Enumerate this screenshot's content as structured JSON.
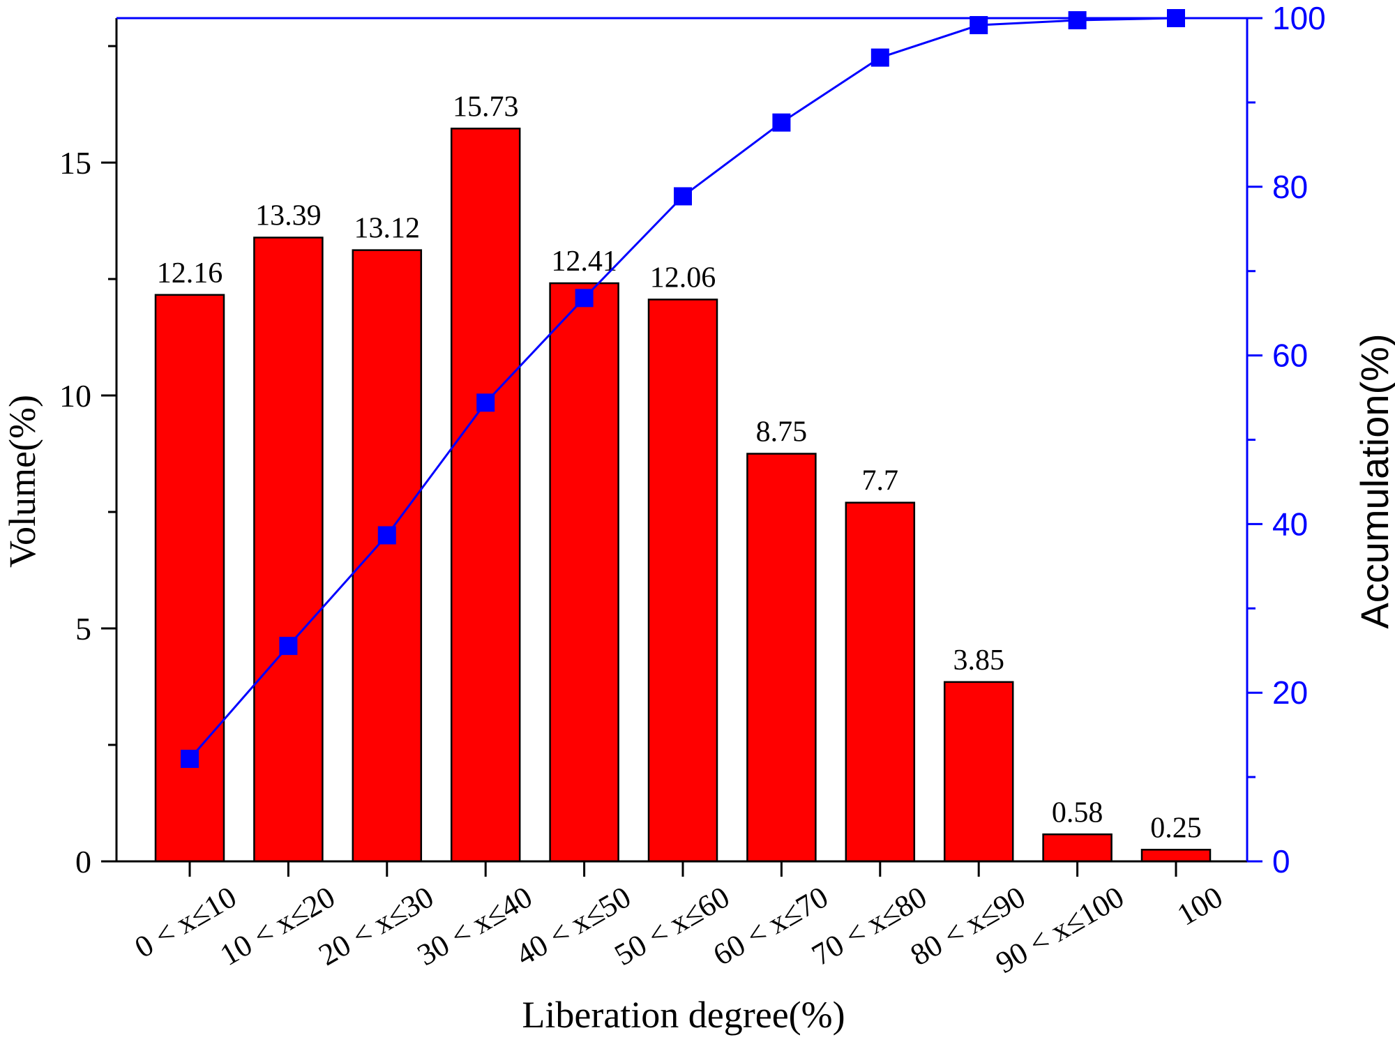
{
  "chart_data": {
    "type": "bar",
    "categories": [
      "0 < x≤10",
      "10 < x≤20",
      "20 < x≤30",
      "30 < x≤40",
      "40 < x≤50",
      "50 < x≤60",
      "60 < x≤70",
      "70 < x≤80",
      "80 < x≤90",
      "90 < x≤100",
      "100"
    ],
    "values": [
      12.16,
      13.39,
      13.12,
      15.73,
      12.41,
      12.06,
      8.75,
      7.7,
      3.85,
      0.58,
      0.25
    ],
    "value_labels": [
      "12.16",
      "13.39",
      "13.12",
      "15.73",
      "12.41",
      "12.06",
      "8.75",
      "7.7",
      "3.85",
      "0.58",
      "0.25"
    ],
    "accumulation": [
      12.16,
      25.55,
      38.67,
      54.4,
      66.81,
      78.87,
      87.62,
      95.32,
      99.17,
      99.75,
      100
    ],
    "xlabel": "Liberation degree(%)",
    "ylabel": "Volume(%)",
    "y2label": "Accumulation(%)",
    "ylim": [
      0,
      18.1
    ],
    "y2lim": [
      0,
      100
    ],
    "yticks": [
      0,
      5,
      10,
      15
    ],
    "yticks_labels": [
      "0",
      "5",
      "10",
      "15"
    ],
    "y2ticks": [
      0,
      20,
      40,
      60,
      80,
      100
    ],
    "y2ticks_labels": [
      "0",
      "20",
      "40",
      "60",
      "80",
      "100"
    ],
    "bar_color": "#ff0000",
    "line_color": "#0000ff",
    "grid": false,
    "legend": "none"
  }
}
